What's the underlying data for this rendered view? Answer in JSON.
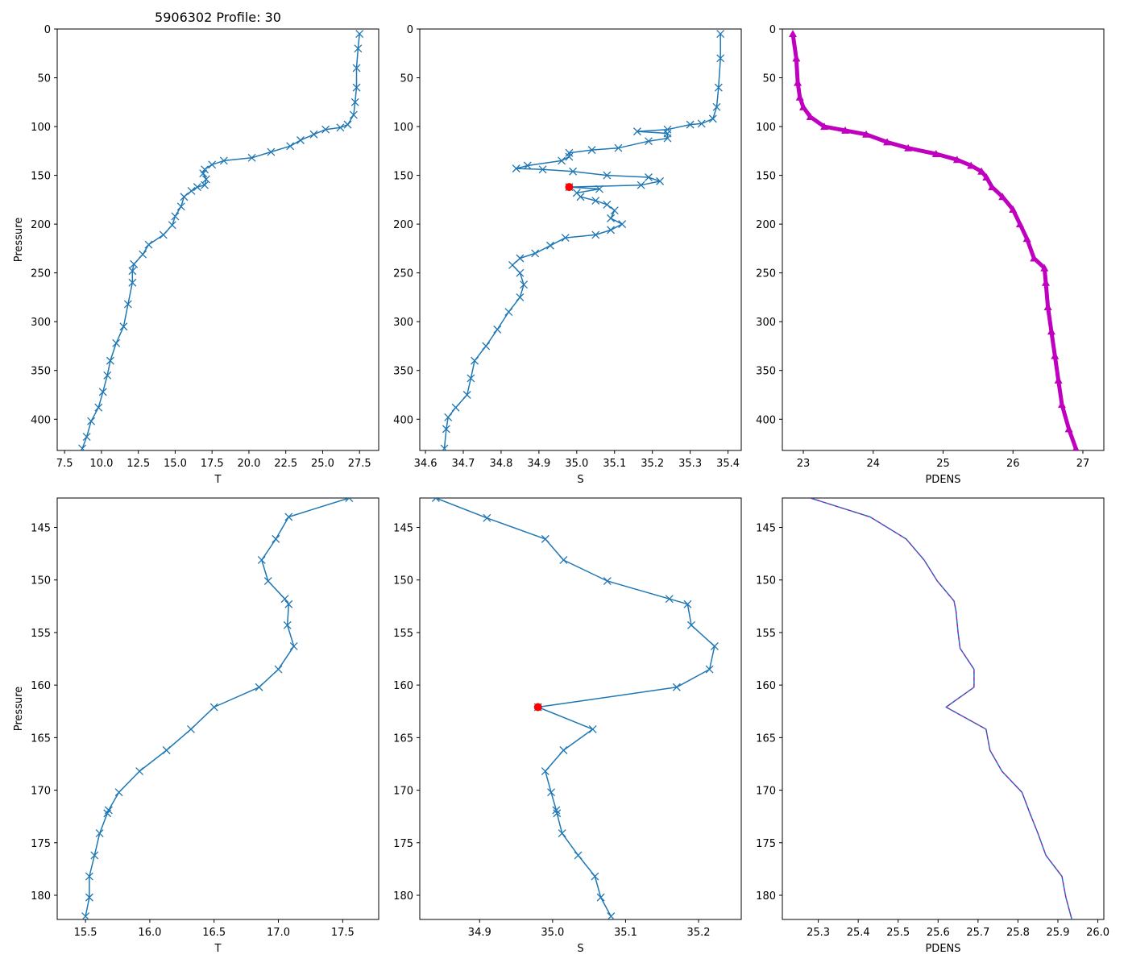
{
  "figure_title": "5906302 Profile: 30",
  "colors": {
    "series": "#1f77b4",
    "pdens_marker": "#bf00bf",
    "highlight": "#ff0000"
  },
  "chart_data": [
    {
      "id": "top-T",
      "type": "line",
      "marker": "x",
      "title": "5906302 Profile: 30",
      "xlabel": "T",
      "ylabel": "Pressure",
      "xlim": [
        7.0,
        28.8
      ],
      "ylim": [
        0,
        432
      ],
      "y_inverted": true,
      "xticks": [
        7.5,
        10.0,
        12.5,
        15.0,
        17.5,
        20.0,
        22.5,
        25.0,
        27.5
      ],
      "xtick_labels": [
        "7.5",
        "10.0",
        "12.5",
        "15.0",
        "17.5",
        "20.0",
        "22.5",
        "25.0",
        "27.5"
      ],
      "yticks": [
        0,
        50,
        100,
        150,
        200,
        250,
        300,
        350,
        400
      ],
      "ytick_labels": [
        "0",
        "50",
        "100",
        "150",
        "200",
        "250",
        "300",
        "350",
        "400"
      ],
      "series": [
        {
          "name": "T",
          "points": [
            [
              27.5,
              5
            ],
            [
              27.4,
              20
            ],
            [
              27.3,
              40
            ],
            [
              27.3,
              60
            ],
            [
              27.2,
              75
            ],
            [
              27.1,
              88
            ],
            [
              26.7,
              98
            ],
            [
              26.2,
              101
            ],
            [
              25.2,
              103
            ],
            [
              24.4,
              108
            ],
            [
              23.5,
              114
            ],
            [
              22.8,
              120
            ],
            [
              21.5,
              126
            ],
            [
              20.2,
              132
            ],
            [
              18.3,
              135
            ],
            [
              17.5,
              139
            ],
            [
              17.0,
              144
            ],
            [
              16.9,
              148
            ],
            [
              17.1,
              154
            ],
            [
              17.0,
              160
            ],
            [
              16.5,
              162
            ],
            [
              16.1,
              166
            ],
            [
              15.6,
              172
            ],
            [
              15.4,
              182
            ],
            [
              15.0,
              192
            ],
            [
              14.8,
              201
            ],
            [
              14.2,
              211
            ],
            [
              13.2,
              221
            ],
            [
              12.8,
              231
            ],
            [
              12.2,
              241
            ],
            [
              12.1,
              248
            ],
            [
              12.1,
              260
            ],
            [
              11.8,
              282
            ],
            [
              11.5,
              305
            ],
            [
              11.0,
              322
            ],
            [
              10.6,
              340
            ],
            [
              10.4,
              355
            ],
            [
              10.1,
              372
            ],
            [
              9.8,
              388
            ],
            [
              9.3,
              402
            ],
            [
              9.0,
              418
            ],
            [
              8.7,
              430
            ]
          ]
        }
      ]
    },
    {
      "id": "top-S",
      "type": "line",
      "marker": "x",
      "xlabel": "S",
      "ylabel": "",
      "xlim": [
        34.585,
        35.435
      ],
      "ylim": [
        0,
        432
      ],
      "y_inverted": true,
      "xticks": [
        34.6,
        34.7,
        34.8,
        34.9,
        35.0,
        35.1,
        35.2,
        35.3,
        35.4
      ],
      "xtick_labels": [
        "34.6",
        "34.7",
        "34.8",
        "34.9",
        "35.0",
        "35.1",
        "35.2",
        "35.3",
        "35.4"
      ],
      "yticks": [
        0,
        50,
        100,
        150,
        200,
        250,
        300,
        350,
        400
      ],
      "ytick_labels": [
        "0",
        "50",
        "100",
        "150",
        "200",
        "250",
        "300",
        "350",
        "400"
      ],
      "series": [
        {
          "name": "S",
          "points": [
            [
              35.38,
              5
            ],
            [
              35.38,
              30
            ],
            [
              35.375,
              60
            ],
            [
              35.37,
              80
            ],
            [
              35.36,
              92
            ],
            [
              35.33,
              97
            ],
            [
              35.3,
              98
            ],
            [
              35.24,
              103
            ],
            [
              35.16,
              105
            ],
            [
              35.24,
              107
            ],
            [
              35.24,
              112
            ],
            [
              35.19,
              115
            ],
            [
              35.11,
              122
            ],
            [
              35.04,
              124
            ],
            [
              34.98,
              127
            ],
            [
              34.98,
              131
            ],
            [
              34.96,
              135
            ],
            [
              34.87,
              140
            ],
            [
              34.84,
              143
            ],
            [
              34.91,
              144
            ],
            [
              34.99,
              146
            ],
            [
              35.08,
              150
            ],
            [
              35.19,
              152
            ],
            [
              35.22,
              156
            ],
            [
              35.17,
              160
            ],
            [
              34.98,
              162
            ],
            [
              35.06,
              164
            ],
            [
              35.0,
              168
            ],
            [
              35.01,
              172
            ],
            [
              35.05,
              176
            ],
            [
              35.08,
              180
            ],
            [
              35.1,
              186
            ],
            [
              35.09,
              194
            ],
            [
              35.12,
              200
            ],
            [
              35.09,
              206
            ],
            [
              35.05,
              211
            ],
            [
              34.97,
              214
            ],
            [
              34.93,
              222
            ],
            [
              34.89,
              230
            ],
            [
              34.85,
              235
            ],
            [
              34.83,
              242
            ],
            [
              34.85,
              250
            ],
            [
              34.86,
              262
            ],
            [
              34.85,
              275
            ],
            [
              34.82,
              290
            ],
            [
              34.79,
              308
            ],
            [
              34.76,
              325
            ],
            [
              34.73,
              340
            ],
            [
              34.72,
              358
            ],
            [
              34.71,
              375
            ],
            [
              34.68,
              388
            ],
            [
              34.66,
              398
            ],
            [
              34.655,
              410
            ],
            [
              34.65,
              430
            ]
          ]
        }
      ],
      "highlight_points": [
        [
          34.98,
          162
        ]
      ]
    },
    {
      "id": "top-PDENS",
      "type": "scatter",
      "marker": "triangle",
      "xlabel": "PDENS",
      "ylabel": "",
      "xlim": [
        22.7,
        27.3
      ],
      "ylim": [
        0,
        432
      ],
      "y_inverted": true,
      "xticks": [
        23,
        24,
        25,
        26,
        27
      ],
      "xtick_labels": [
        "23",
        "24",
        "25",
        "26",
        "27"
      ],
      "yticks": [
        0,
        50,
        100,
        150,
        200,
        250,
        300,
        350,
        400
      ],
      "ytick_labels": [
        "0",
        "50",
        "100",
        "150",
        "200",
        "250",
        "300",
        "350",
        "400"
      ],
      "series": [
        {
          "name": "PDENS",
          "points": [
            [
              22.85,
              5
            ],
            [
              22.9,
              30
            ],
            [
              22.92,
              55
            ],
            [
              22.95,
              70
            ],
            [
              23.0,
              80
            ],
            [
              23.1,
              90
            ],
            [
              23.3,
              100
            ],
            [
              23.6,
              104
            ],
            [
              23.9,
              108
            ],
            [
              24.2,
              116
            ],
            [
              24.5,
              122
            ],
            [
              24.9,
              128
            ],
            [
              25.2,
              134
            ],
            [
              25.4,
              140
            ],
            [
              25.55,
              146
            ],
            [
              25.62,
              152
            ],
            [
              25.7,
              162
            ],
            [
              25.85,
              172
            ],
            [
              26.0,
              185
            ],
            [
              26.1,
              200
            ],
            [
              26.2,
              215
            ],
            [
              26.3,
              235
            ],
            [
              26.45,
              245
            ],
            [
              26.47,
              260
            ],
            [
              26.5,
              285
            ],
            [
              26.55,
              310
            ],
            [
              26.6,
              335
            ],
            [
              26.65,
              360
            ],
            [
              26.7,
              385
            ],
            [
              26.8,
              410
            ],
            [
              26.9,
              430
            ]
          ]
        }
      ]
    },
    {
      "id": "bottom-T",
      "type": "line",
      "marker": "x",
      "xlabel": "T",
      "ylabel": "Pressure",
      "xlim": [
        15.28,
        17.78
      ],
      "ylim": [
        142.2,
        182.3
      ],
      "y_inverted": true,
      "xticks": [
        15.5,
        16.0,
        16.5,
        17.0,
        17.5
      ],
      "xtick_labels": [
        "15.5",
        "16.0",
        "16.5",
        "17.0",
        "17.5"
      ],
      "yticks": [
        145,
        150,
        155,
        160,
        165,
        170,
        175,
        180
      ],
      "ytick_labels": [
        "145",
        "150",
        "155",
        "160",
        "165",
        "170",
        "175",
        "180"
      ],
      "series": [
        {
          "name": "T",
          "points": [
            [
              17.55,
              142.2
            ],
            [
              17.08,
              144.0
            ],
            [
              16.98,
              146.1
            ],
            [
              16.87,
              148.1
            ],
            [
              16.92,
              150.1
            ],
            [
              17.05,
              151.8
            ],
            [
              17.08,
              152.3
            ],
            [
              17.07,
              154.3
            ],
            [
              17.12,
              156.3
            ],
            [
              17.0,
              158.5
            ],
            [
              16.85,
              160.2
            ],
            [
              16.5,
              162.1
            ],
            [
              16.32,
              164.2
            ],
            [
              16.13,
              166.2
            ],
            [
              15.92,
              168.2
            ],
            [
              15.76,
              170.2
            ],
            [
              15.68,
              171.9
            ],
            [
              15.67,
              172.2
            ],
            [
              15.61,
              174.1
            ],
            [
              15.57,
              176.2
            ],
            [
              15.53,
              178.2
            ],
            [
              15.53,
              180.2
            ],
            [
              15.5,
              182.0
            ]
          ]
        }
      ]
    },
    {
      "id": "bottom-S",
      "type": "line",
      "marker": "x",
      "xlabel": "S",
      "ylabel": "",
      "xlim": [
        34.818,
        35.2585
      ],
      "ylim": [
        142.2,
        182.3
      ],
      "y_inverted": true,
      "xticks": [
        34.9,
        35.0,
        35.1,
        35.2
      ],
      "xtick_labels": [
        "34.9",
        "35.0",
        "35.1",
        "35.2"
      ],
      "yticks": [
        145,
        150,
        155,
        160,
        165,
        170,
        175,
        180
      ],
      "ytick_labels": [
        "145",
        "150",
        "155",
        "160",
        "165",
        "170",
        "175",
        "180"
      ],
      "series": [
        {
          "name": "S",
          "points": [
            [
              34.84,
              142.2
            ],
            [
              34.91,
              144.1
            ],
            [
              34.99,
              146.1
            ],
            [
              35.015,
              148.1
            ],
            [
              35.075,
              150.1
            ],
            [
              35.16,
              151.8
            ],
            [
              35.185,
              152.3
            ],
            [
              35.19,
              154.3
            ],
            [
              35.222,
              156.3
            ],
            [
              35.215,
              158.5
            ],
            [
              35.17,
              160.2
            ],
            [
              34.98,
              162.1
            ],
            [
              35.055,
              164.2
            ],
            [
              35.015,
              166.2
            ],
            [
              34.99,
              168.2
            ],
            [
              34.998,
              170.2
            ],
            [
              35.005,
              171.9
            ],
            [
              35.006,
              172.2
            ],
            [
              35.013,
              174.1
            ],
            [
              35.035,
              176.2
            ],
            [
              35.058,
              178.2
            ],
            [
              35.066,
              180.2
            ],
            [
              35.08,
              182.0
            ]
          ]
        }
      ],
      "highlight_points": [
        [
          34.98,
          162.1
        ]
      ]
    },
    {
      "id": "bottom-PDENS",
      "type": "line",
      "marker": "none",
      "xlabel": "PDENS",
      "ylabel": "",
      "xlim": [
        25.21,
        26.015
      ],
      "ylim": [
        142.2,
        182.3
      ],
      "y_inverted": true,
      "xticks": [
        25.3,
        25.4,
        25.5,
        25.6,
        25.7,
        25.8,
        25.9,
        26.0
      ],
      "xtick_labels": [
        "25.3",
        "25.4",
        "25.5",
        "25.6",
        "25.7",
        "25.8",
        "25.9",
        "26.0"
      ],
      "yticks": [
        145,
        150,
        155,
        160,
        165,
        170,
        175,
        180
      ],
      "ytick_labels": [
        "145",
        "150",
        "155",
        "160",
        "165",
        "170",
        "175",
        "180"
      ],
      "series": [
        {
          "name": "PDENS",
          "points": [
            [
              25.28,
              142.2
            ],
            [
              25.43,
              144.0
            ],
            [
              25.52,
              146.1
            ],
            [
              25.565,
              148.1
            ],
            [
              25.598,
              150.1
            ],
            [
              25.64,
              152.0
            ],
            [
              25.645,
              153.0
            ],
            [
              25.65,
              155.0
            ],
            [
              25.655,
              156.5
            ],
            [
              25.69,
              158.5
            ],
            [
              25.69,
              160.2
            ],
            [
              25.62,
              162.1
            ],
            [
              25.72,
              164.2
            ],
            [
              25.73,
              166.2
            ],
            [
              25.76,
              168.2
            ],
            [
              25.81,
              170.2
            ],
            [
              25.83,
              172.2
            ],
            [
              25.85,
              174.1
            ],
            [
              25.87,
              176.2
            ],
            [
              25.91,
              178.2
            ],
            [
              25.92,
              180.2
            ],
            [
              25.935,
              182.3
            ]
          ]
        }
      ],
      "dash_overlay": true
    }
  ]
}
